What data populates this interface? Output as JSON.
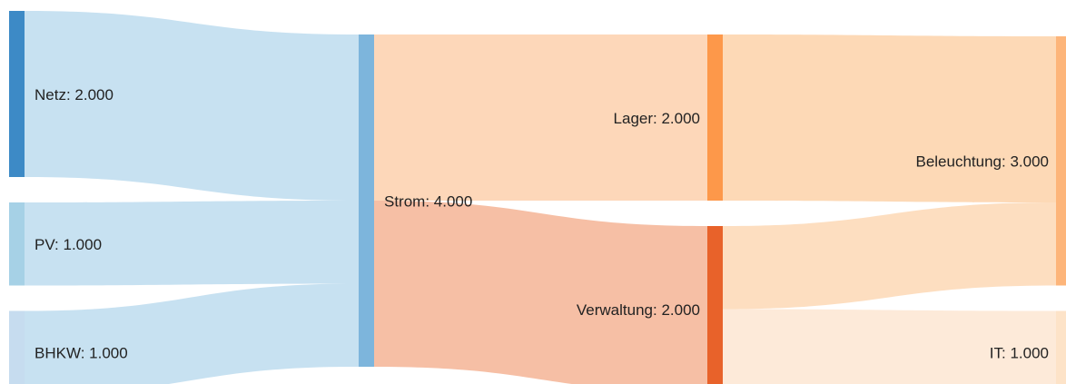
{
  "chart_data": {
    "type": "sankey",
    "nodes": [
      {
        "label": "Netz: 2.000",
        "value": 2000,
        "color": "#3d8ac6"
      },
      {
        "label": "PV: 1.000",
        "value": 1000,
        "color": "#a6d1e6"
      },
      {
        "label": "BHKW: 1.000",
        "value": 1000,
        "color": "#c6dcef"
      },
      {
        "label": "Strom: 4.000",
        "value": 4000,
        "color": "#7db5dc"
      },
      {
        "label": "Lager: 2.000",
        "value": 2000,
        "color": "#fd984a"
      },
      {
        "label": "Verwaltung: 2.000",
        "value": 2000,
        "color": "#e8622a"
      },
      {
        "label": "Beleuchtung: 3.000",
        "value": 3000,
        "color": "#fdb57a"
      },
      {
        "label": "IT: 1.000",
        "value": 1000,
        "color": "#fde3c8"
      }
    ],
    "links": [
      {
        "source": 0,
        "target": 3,
        "value": 2000,
        "color": "#c4dff0"
      },
      {
        "source": 1,
        "target": 3,
        "value": 1000,
        "color": "#c4dff0"
      },
      {
        "source": 2,
        "target": 3,
        "value": 1000,
        "color": "#c4dff0"
      },
      {
        "source": 3,
        "target": 4,
        "value": 2000,
        "color": "#fdd5b5"
      },
      {
        "source": 3,
        "target": 5,
        "value": 2000,
        "color": "#f5bca0"
      },
      {
        "source": 4,
        "target": 6,
        "value": 2000,
        "color": "#fdd7b2"
      },
      {
        "source": 5,
        "target": 6,
        "value": 1000,
        "color": "#fddcbd"
      },
      {
        "source": 5,
        "target": 7,
        "value": 1000,
        "color": "#fde9d7"
      }
    ]
  }
}
